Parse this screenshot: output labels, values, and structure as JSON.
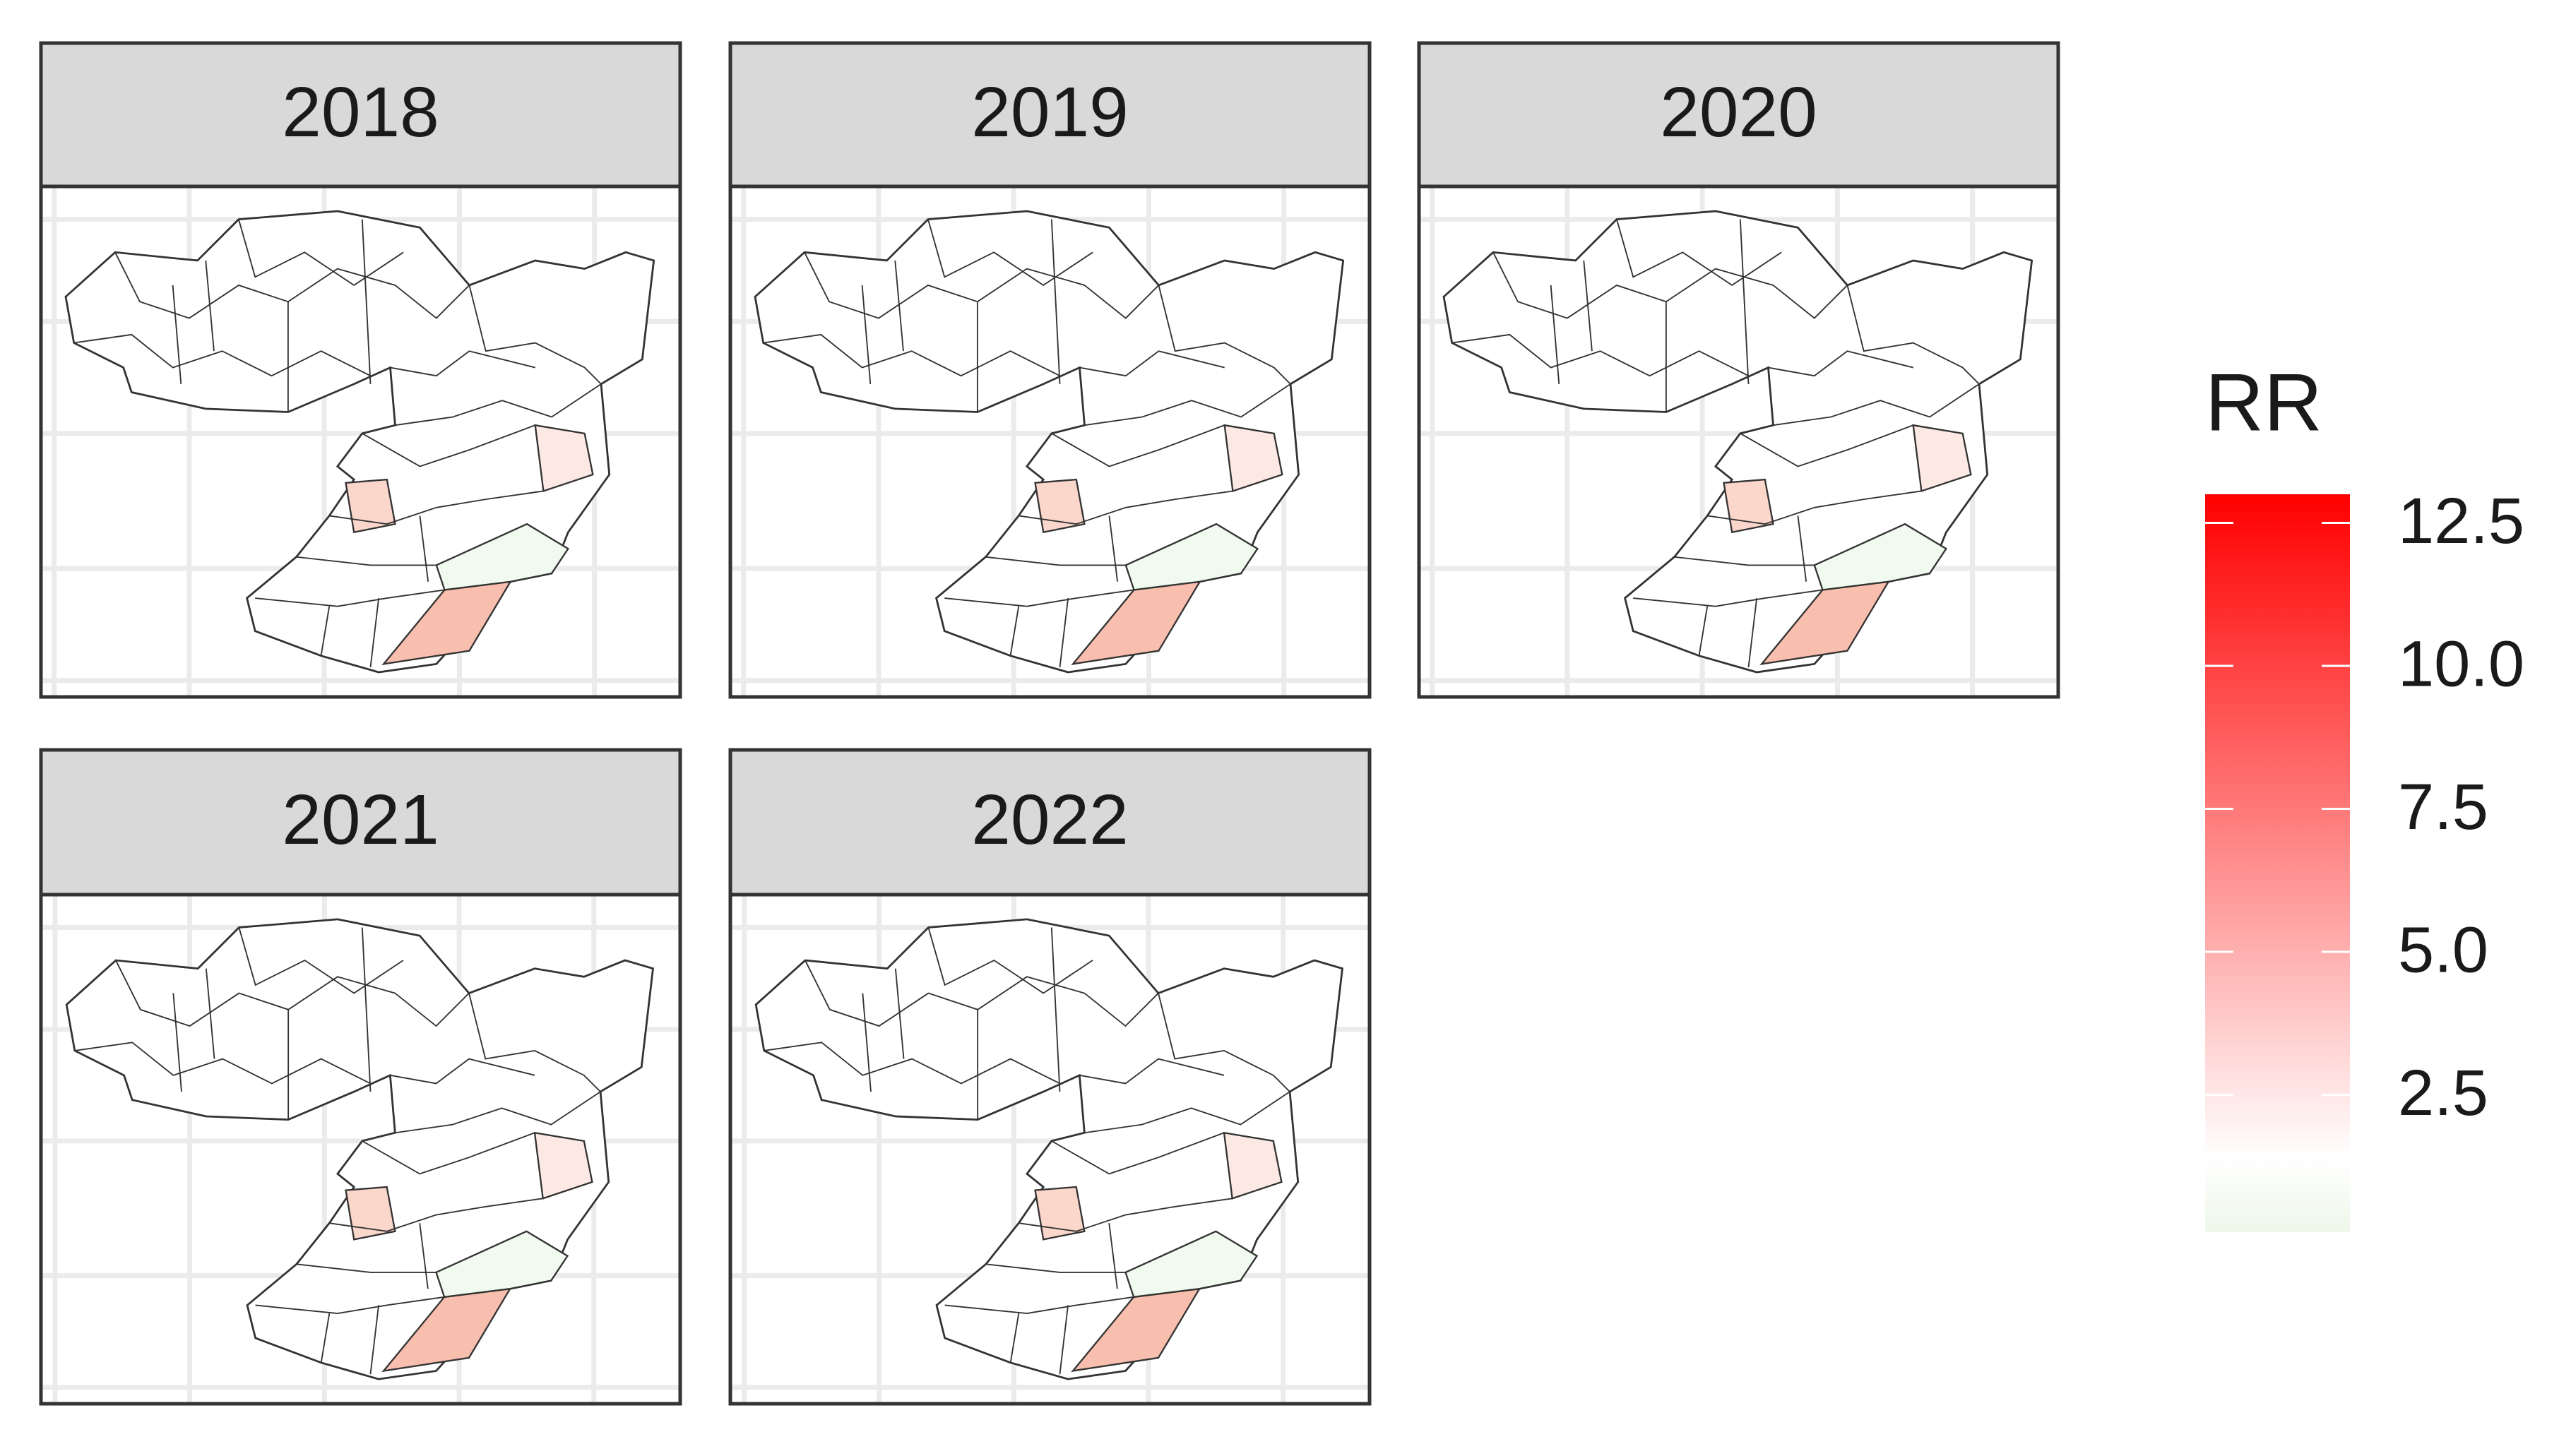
{
  "chart_data": {
    "type": "choropleth",
    "facets": [
      "2018",
      "2019",
      "2020",
      "2021",
      "2022"
    ],
    "legend": {
      "title": "RR",
      "lim": [
        0.1,
        13
      ],
      "ticks": [
        2.5,
        {
          "value": 5,
          "label": "5.0"
        },
        {
          "value": 7.5,
          "label": "7.5"
        },
        {
          "value": 10,
          "label": "10.0"
        },
        12.5
      ],
      "low_color": "#eef7ea",
      "mid_color": "#ffffff",
      "high_color": "#ff0000"
    }
  }
}
